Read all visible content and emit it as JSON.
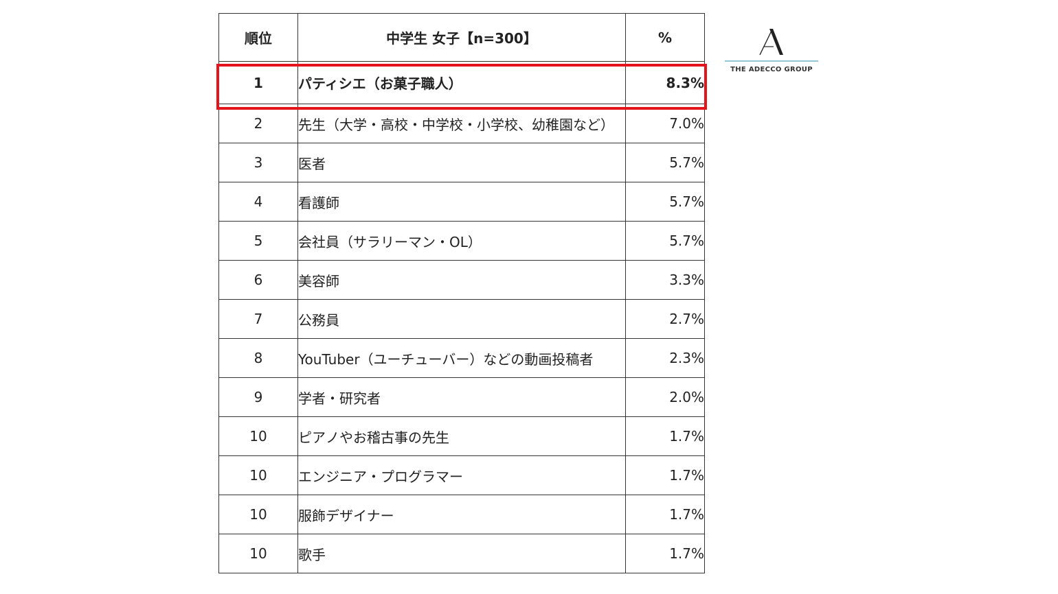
{
  "table": {
    "headers": {
      "rank": "順位",
      "title": "中学生 女子【n=300】",
      "percent": "%"
    },
    "rows": [
      {
        "rank": "1",
        "job": "パティシエ（お菓子職人）",
        "percent": "8.3%"
      },
      {
        "rank": "2",
        "job": "先生（大学・高校・中学校・小学校、幼稚園など）",
        "percent": "7.0%"
      },
      {
        "rank": "3",
        "job": "医者",
        "percent": "5.7%"
      },
      {
        "rank": "4",
        "job": "看護師",
        "percent": "5.7%"
      },
      {
        "rank": "5",
        "job": "会社員（サラリーマン・OL）",
        "percent": "5.7%"
      },
      {
        "rank": "6",
        "job": "美容師",
        "percent": "3.3%"
      },
      {
        "rank": "7",
        "job": "公務員",
        "percent": "2.7%"
      },
      {
        "rank": "8",
        "job": "YouTuber（ユーチューバー）などの動画投稿者",
        "percent": "2.3%"
      },
      {
        "rank": "9",
        "job": "学者・研究者",
        "percent": "2.0%"
      },
      {
        "rank": "10",
        "job": "ピアノやお稽古事の先生",
        "percent": "1.7%"
      },
      {
        "rank": "10",
        "job": "エンジニア・プログラマー",
        "percent": "1.7%"
      },
      {
        "rank": "10",
        "job": "服飾デザイナー",
        "percent": "1.7%"
      },
      {
        "rank": "10",
        "job": "歌手",
        "percent": "1.7%"
      }
    ]
  },
  "highlight_color": "#e3141c",
  "logo": {
    "icon": "adecco-a-logo-icon",
    "text": "THE ADECCO GROUP"
  }
}
